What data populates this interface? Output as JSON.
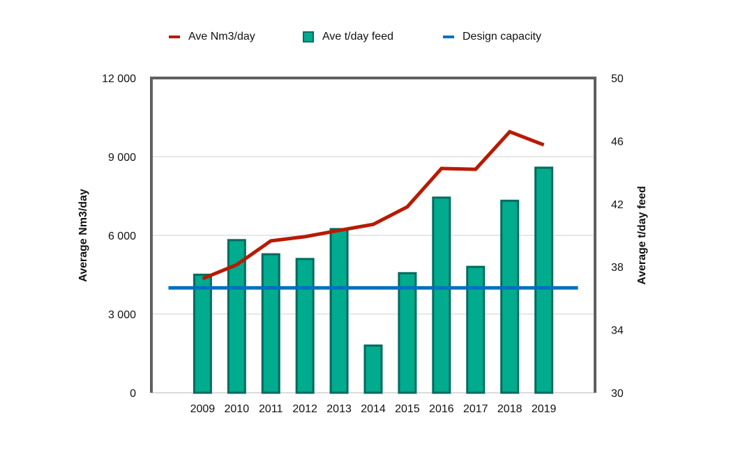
{
  "chart_data": {
    "type": "bar",
    "title": "",
    "categories": [
      "",
      "2009",
      "2010",
      "2011",
      "2012",
      "2013",
      "2014",
      "2015",
      "2016",
      "2017",
      "2018",
      "2019",
      ""
    ],
    "series": [
      {
        "name": "Ave Nm3/day",
        "kind": "line",
        "axis": "left",
        "color": "#b81a00",
        "values": [
          null,
          4350,
          4880,
          5790,
          5950,
          6190,
          6420,
          7090,
          8550,
          8520,
          9950,
          9450,
          null
        ]
      },
      {
        "name": "Ave t/day feed",
        "kind": "bar",
        "axis": "right",
        "color": "#00ab8e",
        "edge": "#006b5f",
        "values": [
          null,
          37.5,
          39.7,
          38.8,
          38.5,
          40.4,
          33.0,
          37.6,
          42.4,
          38.0,
          42.2,
          44.3,
          null
        ]
      },
      {
        "name": "Design capacity",
        "kind": "line",
        "axis": "left",
        "color": "#0070c0",
        "values": [
          4000,
          4000,
          4000,
          4000,
          4000,
          4000,
          4000,
          4000,
          4000,
          4000,
          4000,
          4000,
          4000
        ]
      }
    ],
    "ylabel": "Average Nm3/day",
    "y2label": "Average t/day feed",
    "ylim": [
      0,
      12000
    ],
    "y2lim": [
      30,
      50
    ],
    "yticks": [
      0,
      3000,
      6000,
      9000,
      12000
    ],
    "ytick_labels": [
      "0",
      "3 000",
      "6 000",
      "9 000",
      "12 000"
    ],
    "y2ticks": [
      30,
      34,
      38,
      42,
      46,
      50
    ],
    "y2tick_labels": [
      "30",
      "34",
      "38",
      "42",
      "46",
      "50"
    ],
    "grid": true,
    "legend": "top-center"
  }
}
